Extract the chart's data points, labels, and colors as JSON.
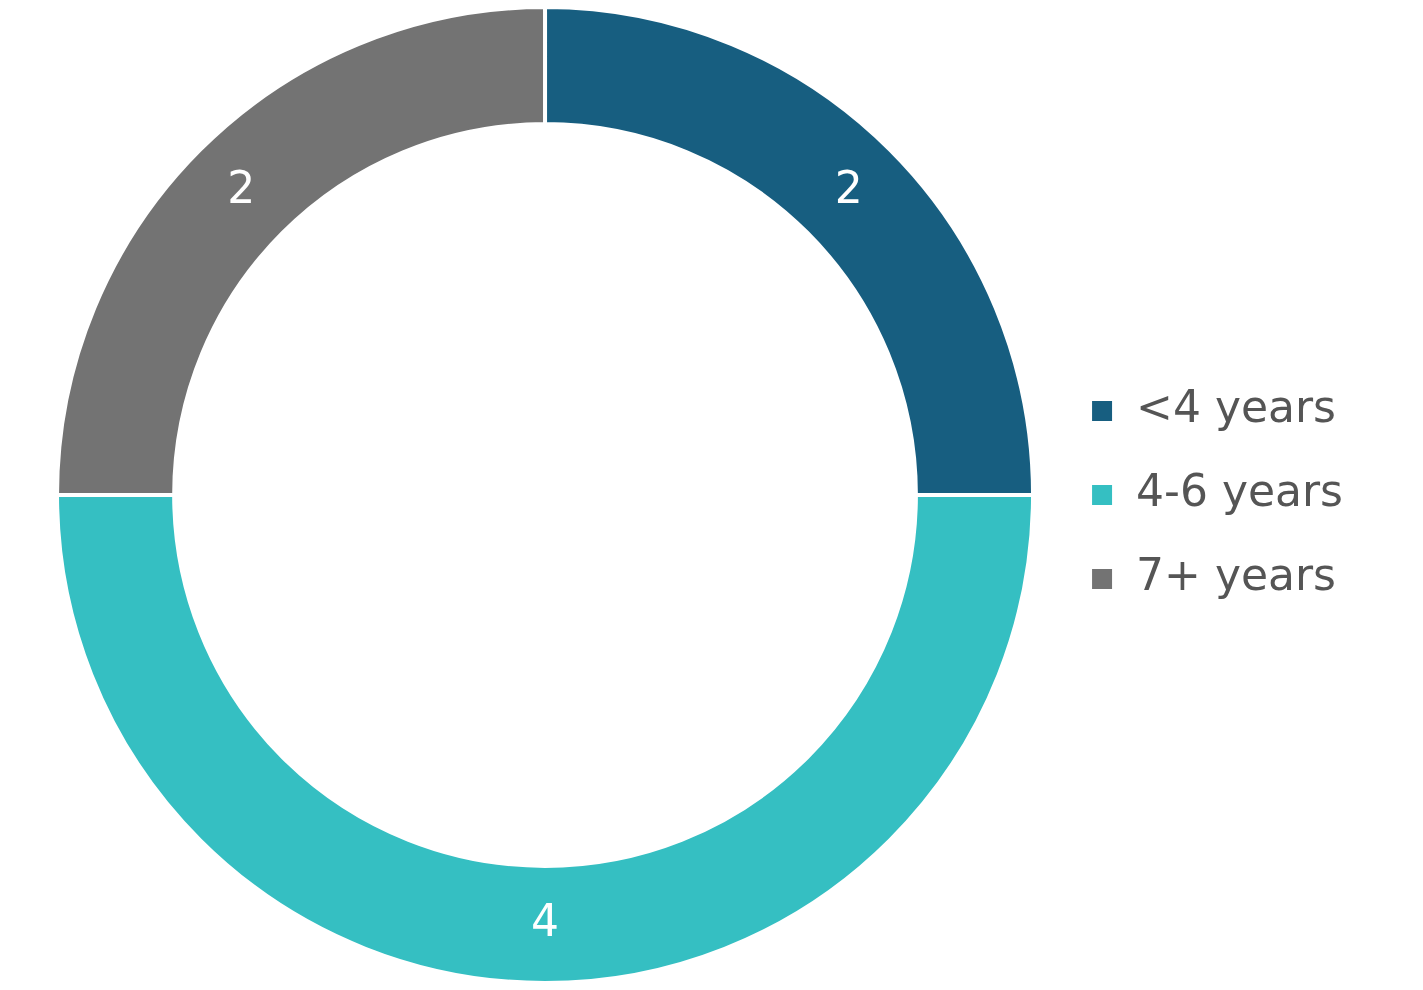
{
  "chart_data": {
    "type": "donut",
    "categories": [
      "<4 years",
      "4-6 years",
      "7+ years"
    ],
    "values": [
      2,
      4,
      2
    ],
    "colors": [
      "#175e80",
      "#35bfc2",
      "#737373"
    ],
    "data_labels": true,
    "legend": "right"
  }
}
